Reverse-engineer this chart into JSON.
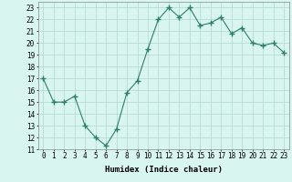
{
  "x": [
    0,
    1,
    2,
    3,
    4,
    5,
    6,
    7,
    8,
    9,
    10,
    11,
    12,
    13,
    14,
    15,
    16,
    17,
    18,
    19,
    20,
    21,
    22,
    23
  ],
  "y": [
    17,
    15,
    15,
    15.5,
    13,
    12,
    11.3,
    12.7,
    15.8,
    16.8,
    19.5,
    22,
    23,
    22.2,
    23,
    21.5,
    21.7,
    22.2,
    20.8,
    21.3,
    20,
    19.8,
    20,
    19.2
  ],
  "line_color": "#2e7d6e",
  "marker": "+",
  "marker_size": 4,
  "bg_color": "#d8f5f0",
  "grid_color": "#b0d8d0",
  "xlabel": "Humidex (Indice chaleur)",
  "ylim": [
    11,
    23.5
  ],
  "xlim": [
    -0.5,
    23.5
  ],
  "yticks": [
    11,
    12,
    13,
    14,
    15,
    16,
    17,
    18,
    19,
    20,
    21,
    22,
    23
  ],
  "xticks": [
    0,
    1,
    2,
    3,
    4,
    5,
    6,
    7,
    8,
    9,
    10,
    11,
    12,
    13,
    14,
    15,
    16,
    17,
    18,
    19,
    20,
    21,
    22,
    23
  ],
  "tick_fontsize": 5.5,
  "xlabel_fontsize": 6.5
}
